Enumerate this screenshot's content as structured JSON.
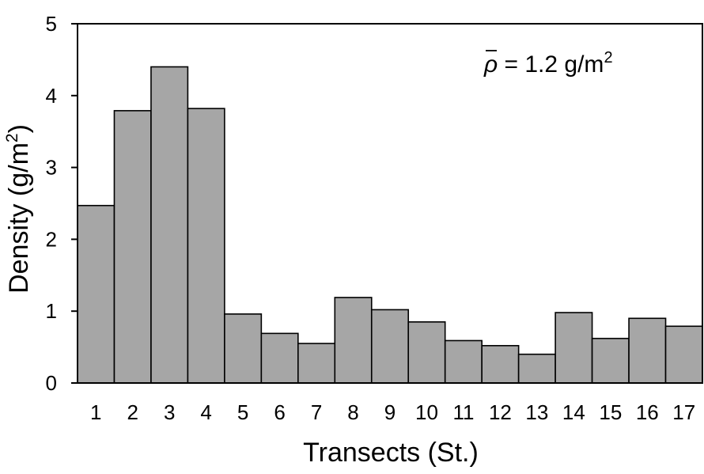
{
  "chart_data": {
    "type": "bar",
    "categories": [
      "1",
      "2",
      "3",
      "4",
      "5",
      "6",
      "7",
      "8",
      "9",
      "10",
      "11",
      "12",
      "13",
      "14",
      "15",
      "16",
      "17"
    ],
    "values": [
      2.47,
      3.79,
      4.4,
      3.82,
      0.96,
      0.69,
      0.55,
      1.19,
      1.02,
      0.85,
      0.59,
      0.52,
      0.4,
      0.98,
      0.62,
      0.9,
      0.79
    ],
    "xlabel": "Transects (St.)",
    "ylabel_main": "Density (g/m",
    "ylabel_sup": "2",
    "ylabel_end": ")",
    "ylim": [
      0,
      5
    ],
    "yticks": [
      "0",
      "1",
      "2",
      "3",
      "4",
      "5"
    ],
    "annotation": {
      "symbol": "ρ",
      "text": " = 1.2 g/m",
      "sup": "2"
    },
    "bar_color": "#a6a6a6",
    "bar_edge_color": "#000000",
    "grid": false,
    "legend": "none"
  }
}
